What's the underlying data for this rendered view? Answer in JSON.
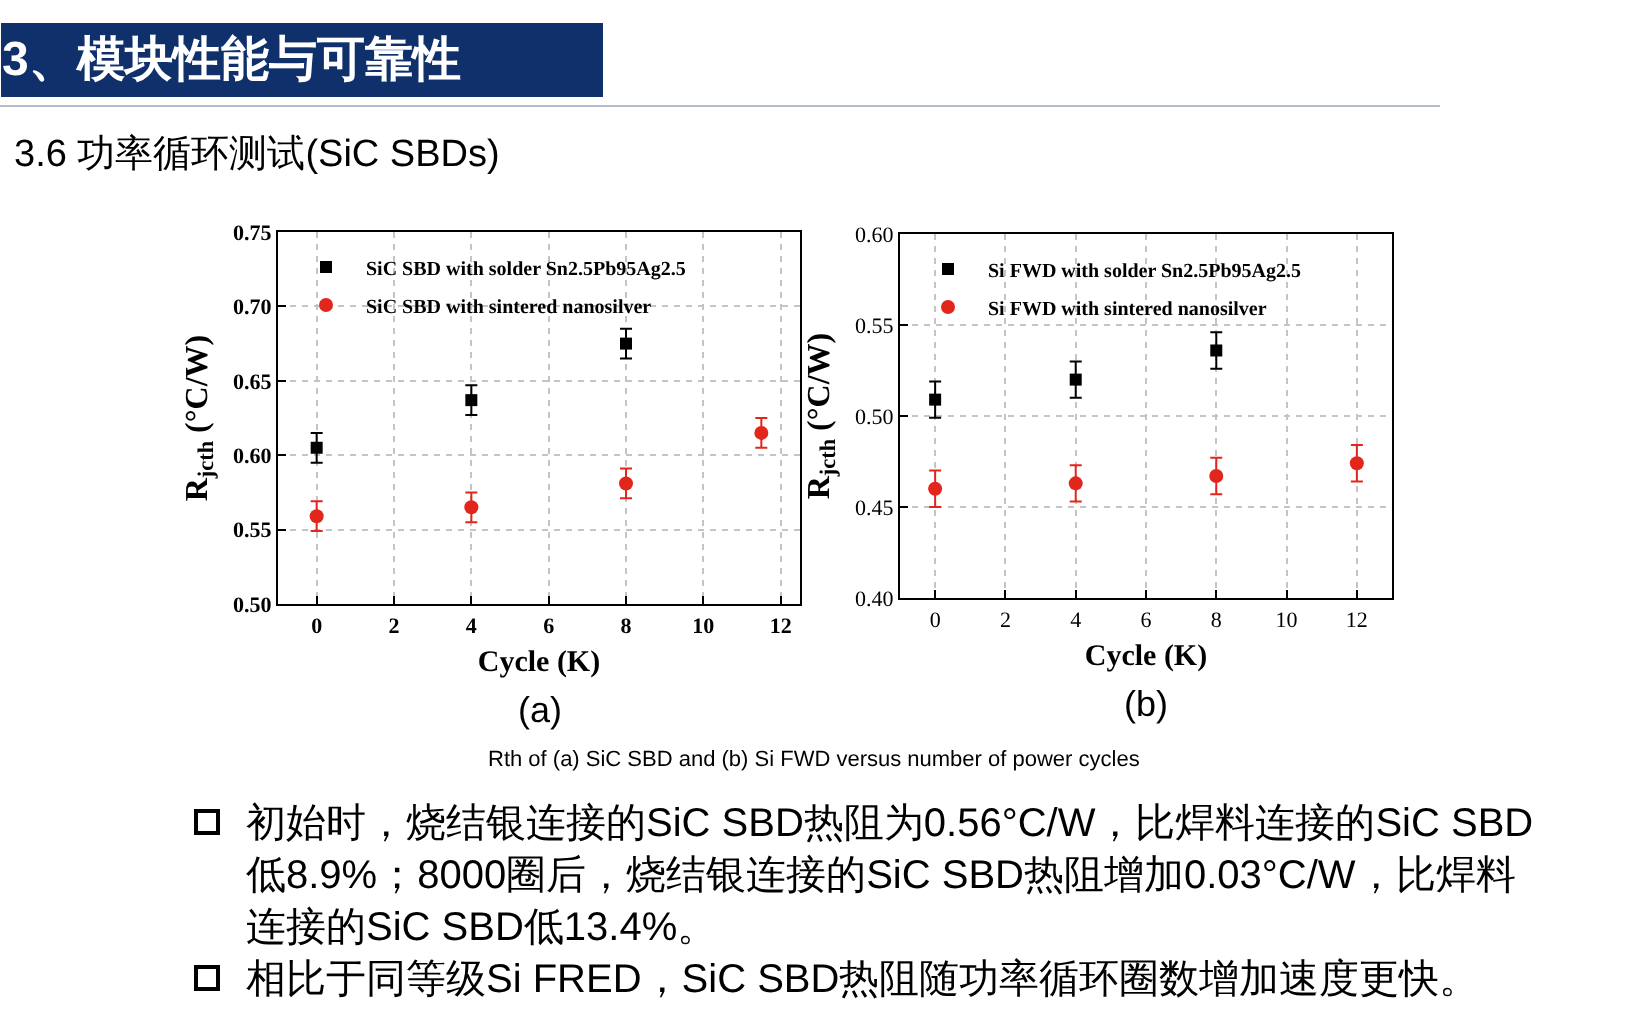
{
  "chart_data": [
    {
      "type": "other",
      "title": "3、模块性能与可靠性",
      "subtitle": "3.6 功率循环测试(SiC SBDs)",
      "annotations": [
        "Rth of (a) SiC SBD and (b) Si FWD versus number of power cycles",
        "初始时，烧结银连接的SiC SBD热阻为0.56°C/W，比焊料连接的SiC SBD低8.9%；8000圈后，烧结银连接的SiC SBD热阻增加0.03°C/W，比焊料连接的SiC SBD低13.4%。",
        "相比于同等级Si FRED，SiC SBD热阻随功率循环圈数增加速度更快。"
      ]
    },
    {
      "type": "scatter",
      "xlabel": "Cycle (K)",
      "ylabel": "R$_{jcth}$ (°C/W)",
      "annotations": [
        "(a)"
      ],
      "xlim": [
        -1,
        12.5
      ],
      "xticks": [
        0,
        2,
        4,
        6,
        8,
        10,
        12
      ],
      "ylim": [
        0.5,
        0.75
      ],
      "yticks": [
        {
          "value": 0.5,
          "label": "0.50"
        },
        0.55,
        {
          "value": 0.6,
          "label": "0.60"
        },
        0.65,
        {
          "value": 0.7,
          "label": "0.70"
        },
        0.75
      ],
      "grid": true,
      "legend": "top left",
      "series": [
        {
          "name": "SiC SBD with solder Sn2.5Pb95Ag2.5",
          "color": "#000000",
          "marker": "square",
          "x": [
            0,
            4,
            8
          ],
          "values": [
            0.605,
            0.637,
            0.675
          ],
          "errors": [
            0.01,
            0.01,
            0.01
          ]
        },
        {
          "name": "SiC SBD with sintered nanosilver",
          "color": "#e3261c",
          "marker": "circle",
          "x": [
            0,
            4,
            8,
            11.5
          ],
          "values": [
            0.559,
            0.565,
            0.581,
            0.615
          ],
          "errors": [
            0.01,
            0.01,
            0.01,
            0.01
          ]
        }
      ]
    },
    {
      "type": "scatter",
      "xlabel": "Cycle (K)",
      "ylabel": "R$_{jcth}$ (°C/W)",
      "annotations": [
        "(b)"
      ],
      "xlim": [
        -1,
        13
      ],
      "xticks": [
        0,
        2,
        4,
        6,
        8,
        10,
        12
      ],
      "ylim": [
        0.4,
        0.6
      ],
      "yticks": [
        {
          "value": 0.4,
          "label": "0.40"
        },
        0.45,
        {
          "value": 0.5,
          "label": "0.50"
        },
        0.55,
        {
          "value": 0.6,
          "label": "0.60"
        }
      ],
      "grid": true,
      "legend": "top left",
      "series": [
        {
          "name": "Si FWD with solder Sn2.5Pb95Ag2.5",
          "color": "#000000",
          "marker": "square",
          "x": [
            0,
            4,
            8
          ],
          "values": [
            0.509,
            0.52,
            0.536
          ],
          "errors": [
            0.01,
            0.01,
            0.01
          ]
        },
        {
          "name": "Si FWD with sintered nanosilver",
          "color": "#e3261c",
          "marker": "circle",
          "x": [
            0,
            4,
            8,
            12
          ],
          "values": [
            0.46,
            0.463,
            0.467,
            0.474
          ],
          "errors": [
            0.01,
            0.01,
            0.01,
            0.01
          ]
        }
      ]
    }
  ]
}
